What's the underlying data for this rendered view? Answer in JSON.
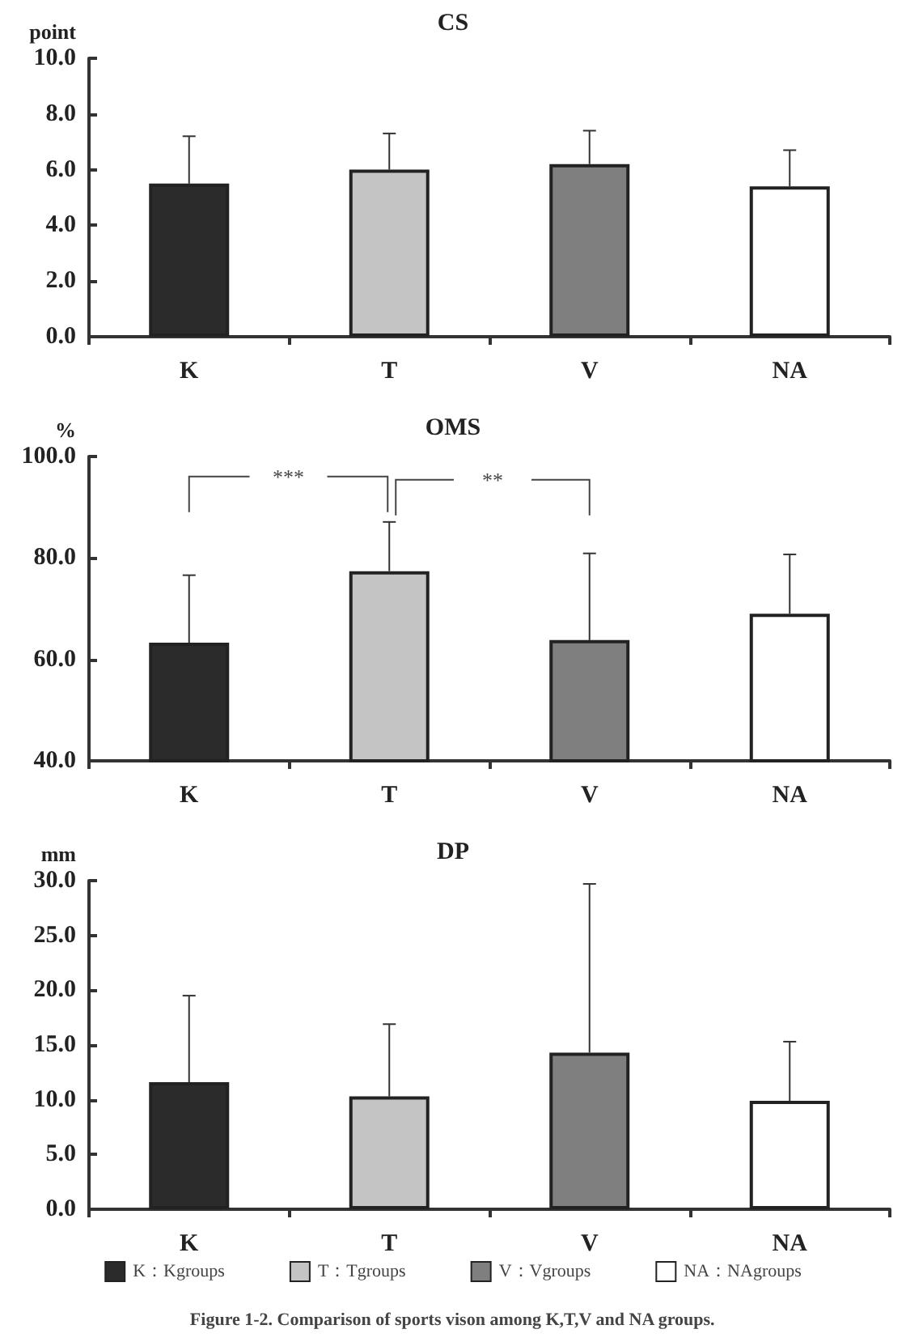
{
  "chart_data": [
    {
      "type": "bar",
      "title": "CS",
      "ylabel": "point",
      "categories": [
        "K",
        "T",
        "V",
        "NA"
      ],
      "values": [
        5.5,
        6.0,
        6.2,
        5.4
      ],
      "colors": [
        "#2b2b2b",
        "#c4c4c4",
        "#7f7f7f",
        "#ffffff"
      ],
      "errors": [
        [
          5.5,
          7.2
        ],
        [
          6.0,
          7.3
        ],
        [
          6.2,
          7.4
        ],
        [
          5.4,
          6.7
        ]
      ],
      "ylim": [
        0,
        10
      ],
      "yticks": [
        {
          "value": 0,
          "label": "0.0"
        },
        {
          "value": 2,
          "label": "2.0"
        },
        {
          "value": 4,
          "label": "4.0"
        },
        {
          "value": 6,
          "label": "6.0"
        },
        {
          "value": 8,
          "label": "8.0"
        },
        {
          "value": 10,
          "label": "10.0"
        }
      ],
      "grid": false
    },
    {
      "type": "bar",
      "title": "OMS",
      "ylabel": "%",
      "categories": [
        "K",
        "T",
        "V",
        "NA"
      ],
      "values": [
        63.3,
        77.4,
        63.8,
        69.0
      ],
      "colors": [
        "#2b2b2b",
        "#c4c4c4",
        "#7f7f7f",
        "#ffffff"
      ],
      "errors": [
        [
          63.3,
          76.6
        ],
        [
          77.4,
          87.1
        ],
        [
          63.8,
          80.9
        ],
        [
          69.0,
          80.7
        ]
      ],
      "ylim": [
        40,
        100
      ],
      "yticks": [
        {
          "value": 40,
          "label": "40.0"
        },
        {
          "value": 60,
          "label": "60.0"
        },
        {
          "value": 80,
          "label": "80.0"
        },
        {
          "value": 100,
          "label": "100.0"
        }
      ],
      "grid": false,
      "annotations": [
        "***",
        "**"
      ]
    },
    {
      "type": "bar",
      "title": "DP",
      "ylabel": "mm",
      "categories": [
        "K",
        "T",
        "V",
        "NA"
      ],
      "stacked": true,
      "legend": "bottom",
      "series": [
        {
          "name": "K：Kgroups",
          "color": "#2b2b2b",
          "values": [
            11.6,
            null,
            null,
            null
          ],
          "errors": [
            [
              11.6,
              19.5
            ],
            null,
            null,
            null
          ]
        },
        {
          "name": "T：Tgroups",
          "color": "#c4c4c4",
          "values": [
            null,
            10.3,
            null,
            null
          ],
          "errors": [
            null,
            [
              10.3,
              16.9
            ],
            null,
            null
          ]
        },
        {
          "name": "V：Vgroups",
          "color": "#7f7f7f",
          "values": [
            null,
            null,
            14.3,
            null
          ],
          "errors": [
            null,
            null,
            [
              14.3,
              29.7
            ],
            null
          ]
        },
        {
          "name": "NA：NAgroups",
          "color": "#ffffff",
          "values": [
            null,
            null,
            null,
            9.9
          ],
          "errors": [
            null,
            null,
            null,
            [
              9.9,
              15.3
            ]
          ]
        }
      ],
      "ylim": [
        0,
        30
      ],
      "yticks": [
        {
          "value": 0,
          "label": "0.0"
        },
        {
          "value": 5,
          "label": "5.0"
        },
        {
          "value": 10,
          "label": "10.0"
        },
        {
          "value": 15,
          "label": "15.0"
        },
        {
          "value": 20,
          "label": "20.0"
        },
        {
          "value": 25,
          "label": "25.0"
        },
        {
          "value": 30,
          "label": "30.0"
        }
      ],
      "grid": false,
      "annotations": [
        "Figure 1-2. Comparison of sports vison among K,T,V and NA groups."
      ]
    }
  ]
}
